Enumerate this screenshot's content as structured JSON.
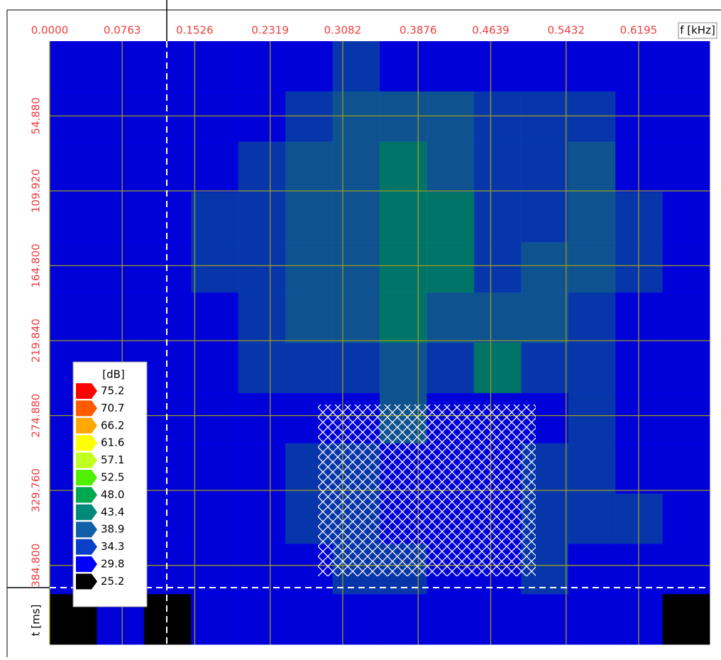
{
  "chart_data": {
    "type": "spectrogram",
    "xlabel": "f [kHz]",
    "ylabel": "t [ms]",
    "xlim": [
      0,
      0.6942
    ],
    "xticks": [
      {
        "value": 0,
        "label": "0.0000"
      },
      0.0763,
      0.1526,
      0.2319,
      0.3082,
      0.3876,
      0.4639,
      0.5432,
      0.6195
    ],
    "ylim": [
      0,
      442.8
    ],
    "yticks": [
      {
        "value": 54.88,
        "label": "54.880"
      },
      {
        "value": 109.92,
        "label": "109.920"
      },
      {
        "value": 164.8,
        "label": "164.800"
      },
      {
        "value": 219.84,
        "label": "219.840"
      },
      {
        "value": 274.88,
        "label": "274.880"
      },
      {
        "value": 329.76,
        "label": "329.760"
      },
      {
        "value": 384.8,
        "label": "384.800"
      }
    ],
    "grid": true,
    "grid_color": "#9c9c1c",
    "tick_color": "#f03c3c",
    "colorbar": {
      "title": "[dB]",
      "levels": [
        75.2,
        70.7,
        66.2,
        61.6,
        57.1,
        52.5,
        {
          "value": 48,
          "label": "48.0"
        },
        43.4,
        38.9,
        34.3,
        29.8,
        25.2
      ],
      "colors": [
        "#ff0000",
        "#ff5a00",
        "#ffa800",
        "#ffff00",
        "#c0ff20",
        "#50f000",
        "#00a850",
        "#008878",
        "#1060a8",
        "#0840c8",
        "#0000ff",
        "#000000"
      ]
    },
    "z": [
      [
        31,
        32,
        31,
        30,
        31,
        32,
        36,
        33,
        32,
        31,
        31,
        32,
        31,
        30
      ],
      [
        32,
        33,
        32,
        33,
        34,
        36,
        40,
        41,
        41,
        36,
        35,
        36,
        33,
        32
      ],
      [
        33,
        33,
        32,
        34,
        37,
        40,
        39,
        44,
        43,
        37,
        37,
        39,
        34,
        33
      ],
      [
        32,
        34,
        33,
        35,
        38,
        41,
        40,
        45,
        44,
        38,
        38,
        40,
        35,
        33
      ],
      [
        33,
        33,
        33,
        35,
        38,
        41,
        40,
        46,
        45,
        38,
        39,
        40,
        35,
        34
      ],
      [
        32,
        33,
        32,
        34,
        37,
        40,
        41,
        44,
        42,
        41,
        39,
        38,
        34,
        33
      ],
      [
        31,
        32,
        31,
        33,
        35,
        37,
        38,
        39,
        37,
        44,
        37,
        35,
        33,
        32
      ],
      [
        30,
        31,
        30,
        32,
        33,
        34,
        34,
        42,
        33,
        33,
        34,
        36,
        33,
        31
      ],
      [
        30,
        31,
        31,
        32,
        33,
        35,
        35,
        34,
        33,
        33,
        38,
        37,
        34,
        32
      ],
      [
        31,
        32,
        31,
        33,
        34,
        36,
        36,
        34,
        34,
        33,
        38,
        36,
        35,
        32
      ],
      [
        30,
        31,
        30,
        31,
        33,
        34,
        35,
        36,
        33,
        33,
        36,
        34,
        32,
        31
      ],
      [
        29,
        30,
        29,
        30,
        31,
        31,
        31,
        31,
        30,
        30,
        31,
        31,
        30,
        29
      ]
    ]
  }
}
